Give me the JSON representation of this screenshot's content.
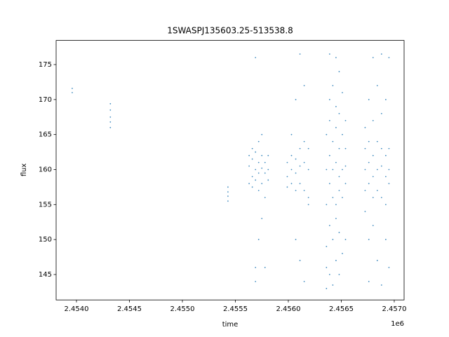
{
  "chart_data": {
    "type": "scatter",
    "title": "1SWASPJ135603.25-513538.8",
    "x_label": "time",
    "y_label": "flux",
    "x_offset_label": "1e6",
    "color": "#1f77b4",
    "x": [
      2453960,
      2453960,
      2454320,
      2454320,
      2454320,
      2454320,
      2454320,
      2455430,
      2455430,
      2455430,
      2455430,
      2455630,
      2455630,
      2455630,
      2455660,
      2455660,
      2455660,
      2455660,
      2455690,
      2455690,
      2455690,
      2455690,
      2455690,
      2455690,
      2455720,
      2455720,
      2455720,
      2455720,
      2455720,
      2455750,
      2455750,
      2455750,
      2455750,
      2455750,
      2455780,
      2455780,
      2455780,
      2455780,
      2455810,
      2455810,
      2455810,
      2455990,
      2455990,
      2455990,
      2456030,
      2456030,
      2456030,
      2456030,
      2456070,
      2456070,
      2456070,
      2456070,
      2456070,
      2456110,
      2456110,
      2456110,
      2456110,
      2456110,
      2456150,
      2456150,
      2456150,
      2456150,
      2456150,
      2456190,
      2456190,
      2456190,
      2456190,
      2456360,
      2456360,
      2456360,
      2456360,
      2456360,
      2456360,
      2456390,
      2456390,
      2456390,
      2456390,
      2456390,
      2456390,
      2456390,
      2456420,
      2456420,
      2456420,
      2456420,
      2456420,
      2456420,
      2456450,
      2456450,
      2456450,
      2456450,
      2456450,
      2456450,
      2456450,
      2456480,
      2456480,
      2456480,
      2456480,
      2456480,
      2456480,
      2456480,
      2456510,
      2456510,
      2456510,
      2456510,
      2456510,
      2456540,
      2456540,
      2456540,
      2456540,
      2456540,
      2456725,
      2456725,
      2456725,
      2456725,
      2456725,
      2456760,
      2456760,
      2456760,
      2456760,
      2456760,
      2456760,
      2456800,
      2456800,
      2456800,
      2456800,
      2456800,
      2456800,
      2456840,
      2456840,
      2456840,
      2456840,
      2456840,
      2456880,
      2456880,
      2456880,
      2456880,
      2456880,
      2456880,
      2456920,
      2456920,
      2456920,
      2456920,
      2456920,
      2456950,
      2456950,
      2456950,
      2456950,
      2456950
    ],
    "values": [
      171.6,
      171.0,
      169.4,
      168.5,
      167.5,
      166.8,
      166.0,
      157.5,
      156.8,
      156.2,
      155.5,
      160.5,
      158,
      162,
      159,
      161.5,
      163,
      157.5,
      160,
      158.5,
      162.5,
      144,
      146,
      176,
      161,
      159.5,
      157,
      164,
      150,
      160.2,
      158,
      162,
      165,
      153,
      159.5,
      161,
      156,
      146,
      160,
      158.5,
      162,
      159,
      161,
      157.5,
      160,
      162,
      158,
      165,
      159.5,
      161.5,
      157,
      170,
      150,
      160.5,
      158,
      163,
      176.5,
      147,
      161,
      157,
      164,
      144,
      172,
      160,
      156,
      163,
      155,
      160,
      155,
      165,
      143,
      146,
      149,
      162,
      158,
      152,
      167,
      170,
      176.5,
      145,
      160,
      156,
      164,
      150,
      172,
      143.5,
      161,
      155,
      166,
      169,
      153,
      176,
      147,
      159,
      163,
      157,
      168,
      151,
      174,
      145,
      160,
      156,
      165,
      148,
      171,
      160.5,
      158,
      163,
      150,
      167,
      160,
      157,
      163,
      166,
      154,
      161,
      158,
      164,
      150,
      170,
      144,
      159,
      162,
      156,
      167,
      152,
      176,
      160,
      157,
      164,
      147,
      172,
      160.5,
      156,
      163,
      143.5,
      168,
      176.5,
      159,
      162,
      155,
      150,
      170,
      160,
      158,
      163,
      176,
      146
    ],
    "xlim": [
      2453808,
      2457093
    ],
    "ylim": [
      141.37,
      178.45
    ],
    "xticks": [
      {
        "value": 2454000,
        "label": "2.4540"
      },
      {
        "value": 2454500,
        "label": "2.4545"
      },
      {
        "value": 2455000,
        "label": "2.4550"
      },
      {
        "value": 2455500,
        "label": "2.4555"
      },
      {
        "value": 2456000,
        "label": "2.4560"
      },
      {
        "value": 2456500,
        "label": "2.4565"
      },
      {
        "value": 2457000,
        "label": "2.4570"
      }
    ],
    "yticks": [
      145,
      150,
      155,
      160,
      165,
      170,
      175
    ]
  }
}
